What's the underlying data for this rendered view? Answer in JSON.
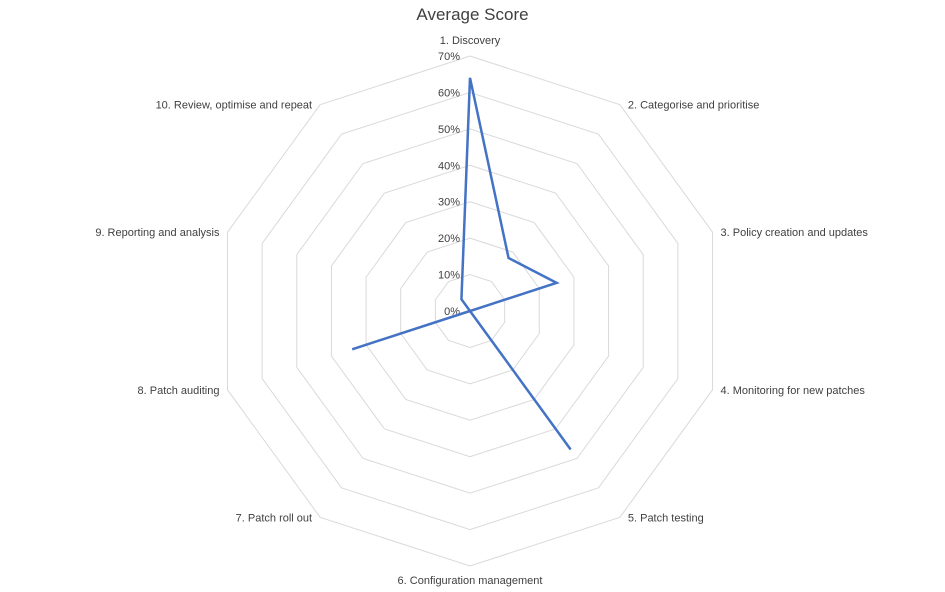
{
  "chart_data": {
    "type": "radar",
    "title": "Average Score",
    "categories": [
      "1. Discovery",
      "2. Categorise and prioritise",
      "3. Policy creation and updates",
      "4. Monitoring for new patches",
      "5. Patch testing",
      "6. Configuration management",
      "7. Patch roll out",
      "8. Patch auditing",
      "9. Reporting and analysis",
      "10. Review, optimise and repeat"
    ],
    "series": [
      {
        "values": [
          0.64,
          0.18,
          0.25,
          0.0,
          0.47,
          0.0,
          0.0,
          0.34,
          0.0,
          0.04
        ]
      }
    ],
    "r_ticks": [
      "0%",
      "10%",
      "20%",
      "30%",
      "40%",
      "50%",
      "60%",
      "70%"
    ],
    "rlim": [
      0,
      0.7
    ],
    "grid": true,
    "series_color": "#4472C4",
    "grid_color": "#D9D9D9"
  }
}
